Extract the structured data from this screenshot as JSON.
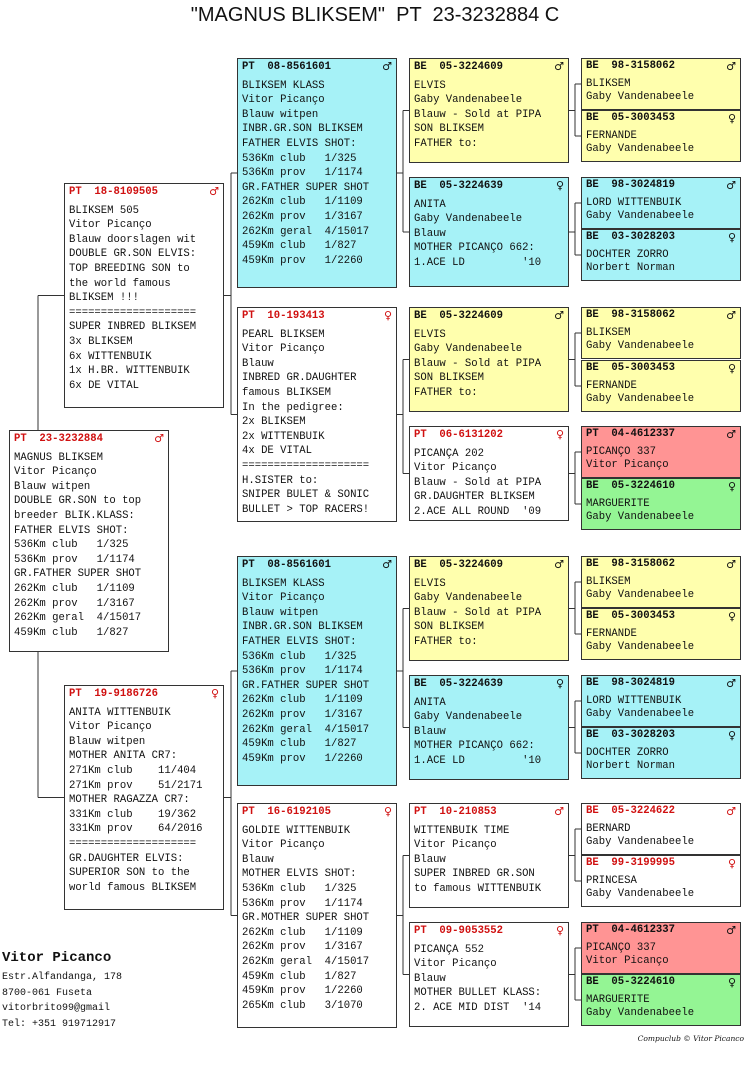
{
  "title": "\"MAGNUS BLIKSEM\"  PT  23-3232884 C",
  "boxes": [
    {
      "ring": "PT  23-3232884",
      "sex": "♂",
      "lines": [
        "MAGNUS BLIKSEM",
        "Vitor Picanço",
        "Blauw witpen",
        "DOUBLE GR.SON to top",
        "breeder BLIK.KLASS:",
        "FATHER ELVIS SHOT:",
        "536Km club   1/325",
        "536Km prov   1/1174",
        "GR.FATHER SUPER SHOT",
        "262Km club   1/1109",
        "262Km prov   1/3167",
        "262Km geral  4/15017",
        "459Km club   1/827"
      ]
    },
    {
      "ring": "PT  18-8109505",
      "sex": "♂",
      "lines": [
        "BLIKSEM 505",
        "Vitor Picanço",
        "Blauw doorslagen wit",
        "DOUBLE GR.SON ELVIS:",
        "TOP BREEDING SON to",
        "the world famous",
        "BLIKSEM !!!",
        "====================",
        "SUPER INBRED BLIKSEM",
        "3x BLIKSEM",
        "6x WITTENBUIK",
        "1x H.BR. WITTENBUIK",
        "6x DE VITAL"
      ]
    },
    {
      "ring": "PT  19-9186726",
      "sex": "♀",
      "lines": [
        "ANITA WITTENBUIK",
        "Vitor Picanço",
        "Blauw witpen",
        "MOTHER ANITA CR7:",
        "271Km club    11/404",
        "271Km prov    51/2171",
        "MOTHER RAGAZZA CR7:",
        "331Km club    19/362",
        "331Km prov    64/2016",
        "====================",
        "GR.DAUGHTER ELVIS:",
        "SUPERIOR SON to the",
        "world famous BLIKSEM"
      ]
    },
    {
      "ring": "PT  08-8561601",
      "sex": "♂",
      "lines": [
        "BLIKSEM KLASS",
        "Vitor Picanço",
        "Blauw witpen",
        "INBR.GR.SON BLIKSEM",
        "FATHER ELVIS SHOT:",
        "536Km club   1/325",
        "536Km prov   1/1174",
        "GR.FATHER SUPER SHOT",
        "262Km club   1/1109",
        "262Km prov   1/3167",
        "262Km geral  4/15017",
        "459Km club   1/827",
        "459Km prov   1/2260"
      ]
    },
    {
      "ring": "PT  10-193413",
      "sex": "♀",
      "lines": [
        "PEARL BLIKSEM",
        "Vitor Picanço",
        "Blauw",
        "INBRED GR.DAUGHTER",
        "famous BLIKSEM",
        "In the pedigree:",
        "2x BLIKSEM",
        "2x WITTENBUIK",
        "4x DE VITAL",
        "====================",
        "H.SISTER to:",
        "SNIPER BULET & SONIC",
        "BULLET > TOP RACERS!"
      ]
    },
    {
      "ring": "PT  08-8561601",
      "sex": "♂",
      "lines": [
        "BLIKSEM KLASS",
        "Vitor Picanço",
        "Blauw witpen",
        "INBR.GR.SON BLIKSEM",
        "FATHER ELVIS SHOT:",
        "536Km club   1/325",
        "536Km prov   1/1174",
        "GR.FATHER SUPER SHOT",
        "262Km club   1/1109",
        "262Km prov   1/3167",
        "262Km geral  4/15017",
        "459Km club   1/827",
        "459Km prov   1/2260"
      ]
    },
    {
      "ring": "PT  16-6192105",
      "sex": "♀",
      "lines": [
        "GOLDIE WITTENBUIK",
        "Vitor Picanço",
        "Blauw",
        "MOTHER ELVIS SHOT:",
        "536Km club   1/325",
        "536Km prov   1/1174",
        "GR.MOTHER SUPER SHOT",
        "262Km club   1/1109",
        "262Km prov   1/3167",
        "262Km geral  4/15017",
        "459Km club   1/827",
        "459Km prov   1/2260",
        "265Km club   3/1070"
      ]
    },
    {
      "ring": "BE  05-3224609",
      "sex": "♂",
      "lines": [
        "ELVIS",
        "Gaby Vandenabeele",
        "Blauw - Sold at PIPA",
        "SON BLIKSEM",
        "FATHER to:"
      ]
    },
    {
      "ring": "BE  05-3224639",
      "sex": "♀",
      "lines": [
        "ANITA",
        "Gaby Vandenabeele",
        "Blauw",
        "MOTHER PICANÇO 662:",
        "1.ACE LD         '10"
      ]
    },
    {
      "ring": "BE  05-3224609",
      "sex": "♂",
      "lines": [
        "ELVIS",
        "Gaby Vandenabeele",
        "Blauw - Sold at PIPA",
        "SON BLIKSEM",
        "FATHER to:"
      ]
    },
    {
      "ring": "PT  06-6131202",
      "sex": "♀",
      "lines": [
        "PICANÇA 202",
        "Vitor Picanço",
        "Blauw - Sold at PIPA",
        "GR.DAUGHTER BLIKSEM",
        "2.ACE ALL ROUND  '09"
      ]
    },
    {
      "ring": "BE  05-3224609",
      "sex": "♂",
      "lines": [
        "ELVIS",
        "Gaby Vandenabeele",
        "Blauw - Sold at PIPA",
        "SON BLIKSEM",
        "FATHER to:"
      ]
    },
    {
      "ring": "BE  05-3224639",
      "sex": "♀",
      "lines": [
        "ANITA",
        "Gaby Vandenabeele",
        "Blauw",
        "MOTHER PICANÇO 662:",
        "1.ACE LD         '10"
      ]
    },
    {
      "ring": "PT  10-210853",
      "sex": "♂",
      "lines": [
        "WITTENBUIK TIME",
        "Vitor Picanço",
        "Blauw",
        "SUPER INBRED GR.SON",
        "to famous WITTENBUIK"
      ]
    },
    {
      "ring": "PT  09-9053552",
      "sex": "♀",
      "lines": [
        "PICANÇA 552",
        "Vitor Picanço",
        "Blauw",
        "MOTHER BULLET KLASS:",
        "2. ACE MID DIST  '14"
      ]
    },
    {
      "ring": "BE  98-3158062",
      "sex": "♂",
      "lines": [
        "BLIKSEM",
        "Gaby Vandenabeele"
      ]
    },
    {
      "ring": "BE  05-3003453",
      "sex": "♀",
      "lines": [
        "FERNANDE",
        "Gaby Vandenabeele"
      ]
    },
    {
      "ring": "BE  98-3024819",
      "sex": "♂",
      "lines": [
        "LORD WITTENBUIK",
        "Gaby Vandenabeele"
      ]
    },
    {
      "ring": "BE  03-3028203",
      "sex": "♀",
      "lines": [
        "DOCHTER ZORRO",
        "Norbert Norman"
      ]
    },
    {
      "ring": "BE  98-3158062",
      "sex": "♂",
      "lines": [
        "BLIKSEM",
        "Gaby Vandenabeele"
      ]
    },
    {
      "ring": "BE  05-3003453",
      "sex": "♀",
      "lines": [
        "FERNANDE",
        "Gaby Vandenabeele"
      ]
    },
    {
      "ring": "PT  04-4612337",
      "sex": "♂",
      "lines": [
        "PICANÇO 337",
        "Vitor Picanço"
      ]
    },
    {
      "ring": "BE  05-3224610",
      "sex": "♀",
      "lines": [
        "MARGUERITE",
        "Gaby Vandenabeele"
      ]
    },
    {
      "ring": "BE  98-3158062",
      "sex": "♂",
      "lines": [
        "BLIKSEM",
        "Gaby Vandenabeele"
      ]
    },
    {
      "ring": "BE  05-3003453",
      "sex": "♀",
      "lines": [
        "FERNANDE",
        "Gaby Vandenabeele"
      ]
    },
    {
      "ring": "BE  98-3024819",
      "sex": "♂",
      "lines": [
        "LORD WITTENBUIK",
        "Gaby Vandenabeele"
      ]
    },
    {
      "ring": "BE  03-3028203",
      "sex": "♀",
      "lines": [
        "DOCHTER ZORRO",
        "Norbert Norman"
      ]
    },
    {
      "ring": "BE  05-3224622",
      "sex": "♂",
      "lines": [
        "BERNARD",
        "Gaby Vandenabeele"
      ]
    },
    {
      "ring": "BE  99-3199995",
      "sex": "♀",
      "lines": [
        "PRINCESA",
        "Gaby Vandenabeele"
      ]
    },
    {
      "ring": "PT  04-4612337",
      "sex": "♂",
      "lines": [
        "PICANÇO 337",
        "Vitor Picanço"
      ]
    },
    {
      "ring": "BE  05-3224610",
      "sex": "♀",
      "lines": [
        "MARGUERITE",
        "Gaby Vandenabeele"
      ]
    }
  ],
  "footer": {
    "name": "Vitor Picanco",
    "lines": [
      "Estr.Alfandanga, 178",
      "8700-061 Fuseta",
      "vitorbrito99@gmail",
      "Tel: +351 919712917"
    ]
  },
  "credit": "Compuclub © Vitor Picanco"
}
